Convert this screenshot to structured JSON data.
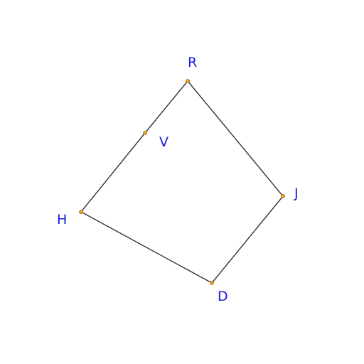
{
  "diagram": {
    "points": {
      "R": "R",
      "V": "V",
      "J": "J",
      "H": "H",
      "D": "D"
    },
    "colors": {
      "label": "#1a1adc",
      "point": "#f2a21d",
      "edge": "#333333"
    }
  }
}
